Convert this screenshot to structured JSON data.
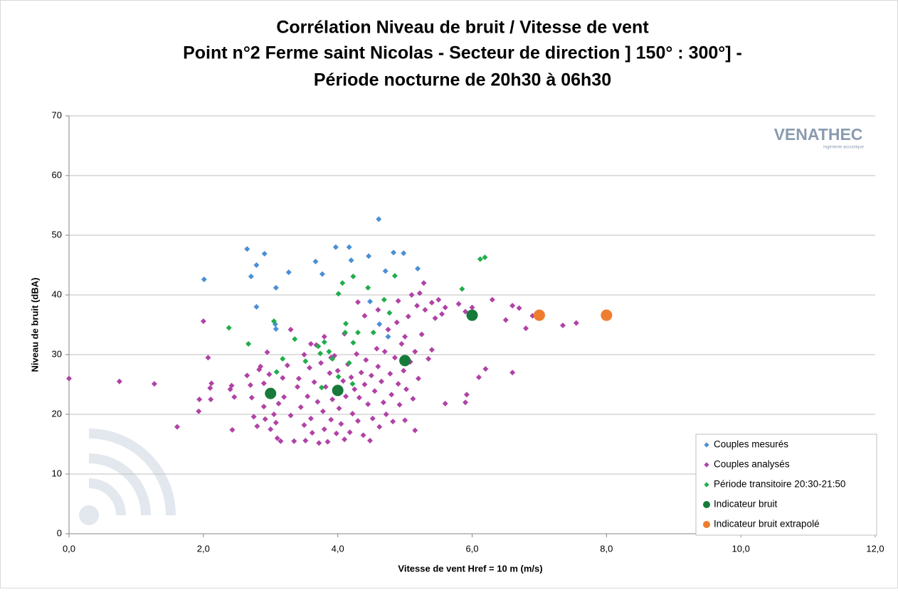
{
  "chart_data": {
    "type": "scatter",
    "title": [
      "Corrélation Niveau de bruit / Vitesse de vent",
      "Point n°2 Ferme saint Nicolas - Secteur de direction ] 150° : 300°] -",
      "Période nocturne de 20h30 à 06h30"
    ],
    "xlabel": "Vitesse de vent Href = 10 m (m/s)",
    "ylabel": "Niveau de bruit (dBA)",
    "logo": {
      "name": "VENATHEC",
      "tagline": "Ingénierie acoustique"
    },
    "xlim": [
      0,
      12
    ],
    "xticks": [
      {
        "value": 0,
        "label": "0,0"
      },
      {
        "value": 2,
        "label": "2,0"
      },
      {
        "value": 4,
        "label": "4,0"
      },
      {
        "value": 6,
        "label": "6,0"
      },
      {
        "value": 8,
        "label": "8,0"
      },
      {
        "value": 10,
        "label": "10,0"
      },
      {
        "value": 12,
        "label": "12,0"
      }
    ],
    "ylim": [
      0,
      70
    ],
    "yticks": [
      0,
      10,
      20,
      30,
      40,
      50,
      60,
      70
    ],
    "grid": true,
    "legend": "lower right",
    "series": [
      {
        "name": "Couples mesurés",
        "color": "#4a8fd4",
        "marker": "diamond",
        "x": [
          2.01,
          2.65,
          2.91,
          2.79,
          2.71,
          2.79,
          3.08,
          3.27,
          3.08,
          3.67,
          3.77,
          3.97,
          4.17,
          4.2,
          4.46,
          4.61,
          4.83,
          4.98,
          5.19,
          4.71,
          4.48,
          4.62,
          4.75,
          3.07
        ],
        "values": [
          42.6,
          47.7,
          46.9,
          45.0,
          43.1,
          38.0,
          41.2,
          43.8,
          34.3,
          45.6,
          43.5,
          48.0,
          48.0,
          45.8,
          46.5,
          52.7,
          47.1,
          47.0,
          44.4,
          44.0,
          38.9,
          35.1,
          33.0,
          35.1
        ]
      },
      {
        "name": "Couples analysés",
        "color": "#b042a6",
        "marker": "diamond",
        "x": [
          0,
          0.75,
          1.27,
          1.61,
          1.93,
          1.94,
          2.0,
          2.07,
          2.1,
          2.11,
          2.12,
          2.4,
          2.42,
          2.43,
          2.46,
          6.0,
          6.3,
          6.5,
          6.6,
          6.7,
          6.8,
          6.6,
          6.1,
          6.2,
          5.9,
          5.92,
          5.6,
          5.4,
          5.6,
          5.8,
          5.9,
          6.9,
          7.35,
          7.55,
          5.15,
          5.0,
          2.65,
          2.7,
          2.72,
          2.75,
          2.8,
          2.83,
          2.85,
          2.9,
          2.9,
          2.92,
          2.95,
          2.98,
          3.0,
          3.02,
          3.05,
          3.08,
          3.1,
          3.12,
          3.15,
          3.18,
          3.2,
          3.25,
          3.3,
          3.35,
          3.4,
          3.42,
          3.45,
          3.5,
          3.52,
          3.55,
          3.58,
          3.6,
          3.62,
          3.65,
          3.68,
          3.7,
          3.72,
          3.75,
          3.78,
          3.8,
          3.82,
          3.85,
          3.88,
          3.9,
          3.92,
          3.95,
          3.98,
          4.0,
          4.02,
          4.05,
          4.08,
          4.1,
          4.12,
          4.15,
          4.18,
          4.2,
          4.22,
          4.25,
          4.28,
          4.3,
          4.32,
          4.35,
          4.38,
          4.4,
          4.42,
          4.45,
          4.48,
          4.5,
          4.52,
          4.55,
          4.58,
          4.6,
          4.62,
          4.65,
          4.68,
          4.7,
          4.72,
          4.75,
          4.78,
          4.8,
          4.82,
          4.85,
          4.88,
          4.9,
          4.92,
          4.95,
          4.98,
          5.0,
          5.02,
          5.05,
          5.08,
          5.1,
          5.12,
          5.15,
          5.18,
          5.2,
          5.22,
          5.25,
          5.28,
          5.3,
          5.35,
          5.4,
          5.45,
          5.5,
          5.55,
          3.3,
          3.5,
          3.6,
          3.9,
          4.3,
          4.4,
          4.1,
          3.8,
          4.6,
          4.9
        ],
        "values": [
          26,
          25.5,
          25.1,
          17.9,
          20.5,
          22.5,
          35.6,
          29.5,
          24.4,
          22.5,
          25.2,
          24.2,
          24.8,
          17.4,
          22.9,
          37.9,
          39.2,
          35.8,
          38.2,
          37.8,
          34.4,
          27.0,
          26.2,
          27.6,
          22.0,
          23.3,
          21.8,
          30.8,
          37.9,
          38.5,
          37.2,
          36.5,
          34.9,
          35.3,
          17.3,
          19.0,
          26.5,
          24.9,
          22.8,
          19.6,
          18.0,
          27.5,
          28.0,
          25.2,
          21.3,
          19.2,
          30.4,
          26.7,
          17.5,
          24.0,
          20.0,
          18.6,
          16.0,
          21.8,
          15.5,
          26.1,
          22.9,
          28.2,
          19.8,
          15.5,
          24.6,
          26.0,
          21.2,
          18.2,
          15.6,
          23.0,
          27.8,
          19.3,
          16.9,
          25.4,
          31.6,
          22.1,
          15.2,
          28.6,
          20.5,
          17.5,
          24.6,
          15.4,
          26.9,
          19.1,
          22.5,
          29.8,
          16.8,
          27.3,
          21.0,
          18.4,
          25.6,
          15.8,
          23.0,
          28.4,
          17.0,
          26.2,
          20.1,
          24.2,
          30.1,
          18.9,
          22.8,
          27.0,
          16.5,
          25.0,
          29.1,
          21.7,
          15.6,
          26.5,
          19.3,
          23.9,
          31.0,
          28.0,
          17.9,
          25.5,
          22.0,
          30.5,
          20.0,
          34.2,
          26.8,
          23.3,
          18.8,
          29.5,
          35.4,
          25.1,
          21.6,
          31.8,
          27.3,
          33.0,
          24.2,
          36.4,
          28.8,
          40.0,
          22.6,
          30.5,
          38.2,
          26.0,
          40.3,
          33.4,
          42.0,
          37.5,
          29.3,
          38.7,
          36.1,
          39.2,
          36.8,
          34.2,
          30.0,
          31.8,
          29.5,
          38.8,
          36.5,
          33.5,
          33.0,
          37.5,
          39.0
        ]
      },
      {
        "name": "Période transitoire 20:30-21:50",
        "color": "#22ad4c",
        "marker": "diamond",
        "x": [
          2.38,
          2.67,
          3.05,
          3.09,
          3.36,
          3.52,
          3.71,
          3.74,
          3.87,
          3.92,
          3.8,
          4.01,
          4.07,
          4.23,
          4.12,
          4.11,
          4.23,
          4.3,
          4.45,
          4.69,
          4.85,
          4.53,
          4.77,
          4.17,
          4.22,
          4.01,
          5.85,
          6.12,
          6.19,
          3.18,
          3.76
        ],
        "values": [
          34.5,
          31.8,
          35.6,
          27.1,
          32.6,
          28.9,
          31.4,
          30.2,
          30.5,
          29.3,
          32.1,
          40.2,
          42.0,
          43.1,
          35.2,
          33.7,
          32.0,
          33.7,
          41.2,
          39.2,
          43.2,
          33.7,
          37.0,
          28.6,
          25.1,
          26.3,
          41.0,
          46.0,
          46.3,
          29.3,
          24.5
        ]
      },
      {
        "name": "Indicateur bruit",
        "color": "#177a3a",
        "marker": "circle",
        "x": [
          3,
          4,
          5,
          6
        ],
        "values": [
          23.5,
          24,
          29,
          36.6
        ]
      },
      {
        "name": "Indicateur bruit extrapolé",
        "color": "#ee7d30",
        "marker": "circle",
        "x": [
          7,
          8
        ],
        "values": [
          36.6,
          36.6
        ]
      }
    ]
  }
}
